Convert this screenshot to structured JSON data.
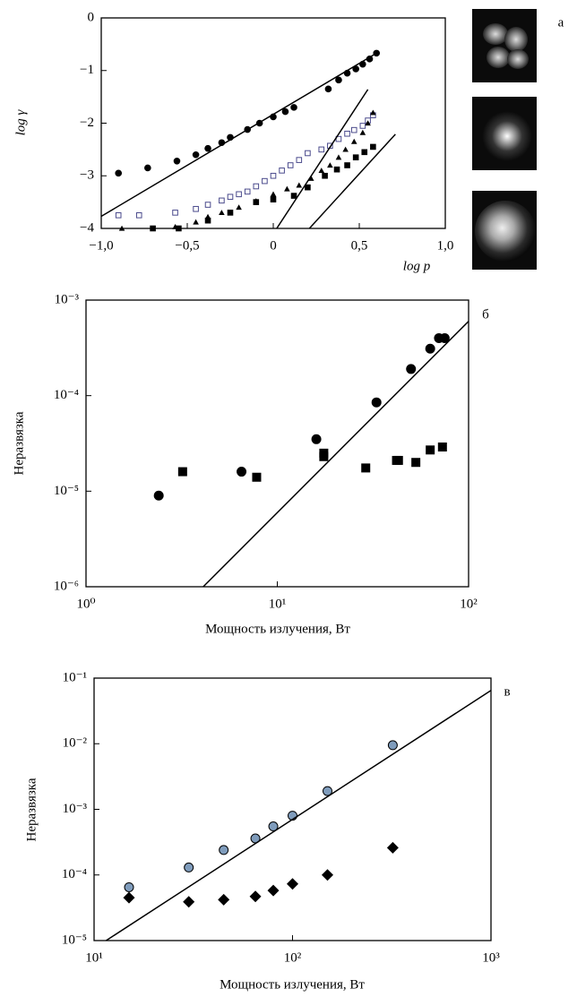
{
  "chart_data": [
    {
      "type": "scatter",
      "panel_label": "а",
      "xlabel": "log p",
      "ylabel": "log γ",
      "xscale": "linear",
      "yscale": "linear",
      "xlim": [
        -1,
        1
      ],
      "ylim": [
        -4,
        0
      ],
      "xticks": [
        {
          "value": -1,
          "label": "−1,0"
        },
        {
          "value": -0.5,
          "label": "−0,5"
        },
        0,
        {
          "value": 0.5,
          "label": "0,5"
        },
        {
          "value": 1,
          "label": "1,0"
        }
      ],
      "yticks": [
        0,
        {
          "value": -1,
          "label": "−1"
        },
        {
          "value": -2,
          "label": "−2"
        },
        {
          "value": -3,
          "label": "−3"
        },
        {
          "value": -4,
          "label": "−4"
        }
      ],
      "series": [
        {
          "marker": "circle",
          "color": "#000000",
          "x": [
            -0.9,
            -0.73,
            -0.56,
            -0.45,
            -0.38,
            -0.3,
            -0.25,
            -0.15,
            -0.08,
            0,
            0.07,
            0.12,
            0.32,
            0.38,
            0.43,
            0.48,
            0.52,
            0.56,
            0.6
          ],
          "values": [
            -2.95,
            -2.85,
            -2.72,
            -2.6,
            -2.48,
            -2.37,
            -2.27,
            -2.12,
            -2.0,
            -1.88,
            -1.78,
            -1.7,
            -1.35,
            -1.18,
            -1.05,
            -0.97,
            -0.88,
            -0.78,
            -0.67
          ]
        },
        {
          "marker": "open-square",
          "color": "#4a4a8c",
          "x": [
            -0.9,
            -0.78,
            -0.57,
            -0.45,
            -0.38,
            -0.3,
            -0.25,
            -0.2,
            -0.15,
            -0.1,
            -0.05,
            0,
            0.05,
            0.1,
            0.15,
            0.2,
            0.28,
            0.33,
            0.38,
            0.43,
            0.47,
            0.52,
            0.55,
            0.58
          ],
          "values": [
            -3.75,
            -3.75,
            -3.7,
            -3.63,
            -3.55,
            -3.47,
            -3.4,
            -3.35,
            -3.3,
            -3.2,
            -3.1,
            -3.0,
            -2.9,
            -2.8,
            -2.7,
            -2.57,
            -2.5,
            -2.43,
            -2.3,
            -2.2,
            -2.13,
            -2.05,
            -1.95,
            -1.85
          ]
        },
        {
          "marker": "triangle",
          "color": "#000000",
          "x": [
            -0.88,
            -0.57,
            -0.45,
            -0.38,
            -0.3,
            -0.2,
            -0.1,
            0,
            0.08,
            0.15,
            0.22,
            0.28,
            0.33,
            0.38,
            0.42,
            0.47,
            0.52,
            0.55,
            0.58
          ],
          "values": [
            -4.0,
            -3.97,
            -3.88,
            -3.78,
            -3.7,
            -3.6,
            -3.48,
            -3.35,
            -3.25,
            -3.18,
            -3.05,
            -2.9,
            -2.8,
            -2.65,
            -2.5,
            -2.35,
            -2.18,
            -2.0,
            -1.8
          ]
        },
        {
          "marker": "square",
          "color": "#000000",
          "x": [
            -0.7,
            -0.55,
            -0.38,
            -0.25,
            -0.1,
            0,
            0.12,
            0.2,
            0.3,
            0.37,
            0.43,
            0.48,
            0.53,
            0.58
          ],
          "values": [
            -4.0,
            -4.0,
            -3.85,
            -3.7,
            -3.5,
            -3.45,
            -3.38,
            -3.22,
            -3.0,
            -2.88,
            -2.8,
            -2.65,
            -2.55,
            -2.45
          ]
        },
        {
          "marker": "line",
          "color": "#000000",
          "x": [
            -1,
            0.6
          ],
          "values": [
            -3.77,
            -0.67
          ]
        },
        {
          "marker": "line",
          "color": "#000000",
          "x": [
            0.02,
            0.55
          ],
          "values": [
            -4,
            -1.36
          ]
        },
        {
          "marker": "line",
          "color": "#000000",
          "x": [
            0.21,
            0.71
          ],
          "values": [
            -4,
            -2.21
          ]
        }
      ]
    },
    {
      "type": "scatter",
      "panel_label": "б",
      "xlabel": "Мощность излучения, Вт",
      "ylabel": "Неразвязка",
      "xscale": "log",
      "yscale": "log",
      "xlim": [
        1,
        100
      ],
      "ylim": [
        1e-06,
        0.001
      ],
      "xticks": [
        {
          "value": 1,
          "label": "10⁰"
        },
        {
          "value": 10,
          "label": "10¹"
        },
        {
          "value": 100,
          "label": "10²"
        }
      ],
      "yticks": [
        {
          "value": 0.001,
          "label": "10⁻³"
        },
        {
          "value": 0.0001,
          "label": "10⁻⁴"
        },
        {
          "value": 1e-05,
          "label": "10⁻⁵"
        },
        {
          "value": 1e-06,
          "label": "10⁻⁶"
        }
      ],
      "series": [
        {
          "marker": "circle",
          "color": "#000000",
          "x": [
            2.4,
            6.5,
            16,
            33,
            50,
            63,
            70,
            75
          ],
          "values": [
            9e-06,
            1.6e-05,
            3.5e-05,
            8.5e-05,
            0.00019,
            0.00031,
            0.0004,
            0.0004
          ]
        },
        {
          "marker": "square",
          "color": "#000000",
          "x": [
            3.2,
            7.8,
            17.5,
            17.5,
            29,
            42,
            43,
            53,
            63,
            73
          ],
          "values": [
            1.6e-05,
            1.4e-05,
            2.5e-05,
            2.3e-05,
            1.75e-05,
            2.1e-05,
            2.1e-05,
            2e-05,
            2.7e-05,
            2.9e-05
          ]
        },
        {
          "marker": "line",
          "color": "#000000",
          "x": [
            4.1,
            100
          ],
          "values": [
            1e-06,
            0.0006
          ]
        }
      ]
    },
    {
      "type": "scatter",
      "panel_label": "в",
      "xlabel": "Мощность излучения, Вт",
      "ylabel": "Неразвязка",
      "xscale": "log",
      "yscale": "log",
      "xlim": [
        10,
        1000
      ],
      "ylim": [
        1e-05,
        0.1
      ],
      "xticks": [
        {
          "value": 10,
          "label": "10¹"
        },
        {
          "value": 100,
          "label": "10²"
        },
        {
          "value": 1000,
          "label": "10³"
        }
      ],
      "yticks": [
        {
          "value": 0.1,
          "label": "10⁻¹"
        },
        {
          "value": 0.01,
          "label": "10⁻²"
        },
        {
          "value": 0.001,
          "label": "10⁻³"
        },
        {
          "value": 0.0001,
          "label": "10⁻⁴"
        },
        {
          "value": 1e-05,
          "label": "10⁻⁵"
        }
      ],
      "series": [
        {
          "marker": "circle",
          "color": "#7f9cbc",
          "x": [
            15,
            30,
            45,
            65,
            80,
            100,
            150,
            320
          ],
          "values": [
            6.5e-05,
            0.00013,
            0.00024,
            0.00036,
            0.00055,
            0.0008,
            0.0019,
            0.0095
          ]
        },
        {
          "marker": "diamond",
          "color": "#000000",
          "x": [
            15,
            30,
            45,
            65,
            80,
            100,
            150,
            320
          ],
          "values": [
            4.5e-05,
            3.9e-05,
            4.2e-05,
            4.7e-05,
            5.8e-05,
            7.3e-05,
            0.0001,
            0.00026
          ]
        },
        {
          "marker": "line",
          "color": "#000000",
          "x": [
            11.5,
            1000
          ],
          "values": [
            1e-05,
            0.065
          ]
        }
      ]
    }
  ]
}
